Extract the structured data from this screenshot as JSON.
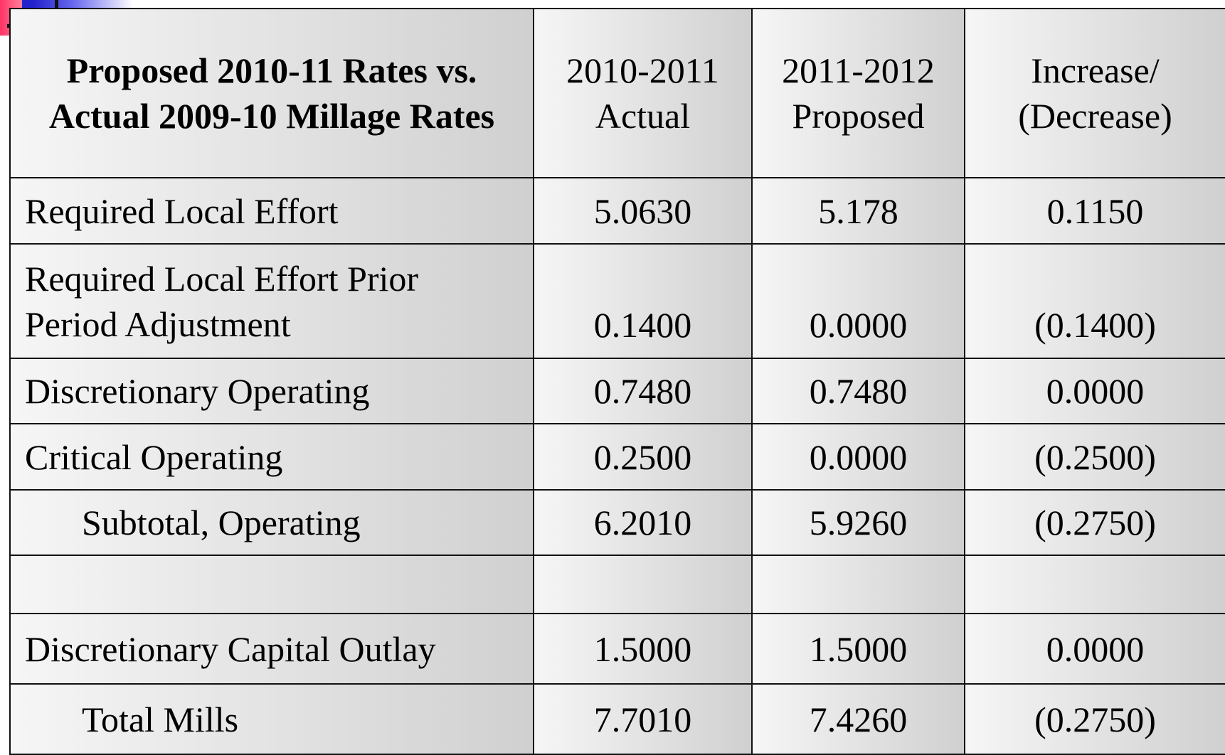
{
  "table": {
    "header": [
      [
        "Proposed 2010-11 Rates vs.",
        "Actual 2009-10 Millage Rates"
      ],
      [
        "2010-2011",
        "Actual"
      ],
      [
        "2011-2012",
        "Proposed"
      ],
      [
        "Increase/",
        "(Decrease)"
      ]
    ],
    "rows": [
      {
        "label": [
          "Required Local Effort"
        ],
        "values": [
          "5.0630",
          "5.178",
          "0.1150"
        ]
      },
      {
        "label": [
          "Required Local Effort Prior",
          "Period Adjustment"
        ],
        "values": [
          "0.1400",
          "0.0000",
          "(0.1400)"
        ]
      },
      {
        "label": [
          "Discretionary Operating"
        ],
        "values": [
          "0.7480",
          "0.7480",
          "0.0000"
        ]
      },
      {
        "label": [
          "Critical Operating"
        ],
        "values": [
          "0.2500",
          "0.0000",
          "(0.2500)"
        ]
      },
      {
        "label": [
          "Subtotal, Operating"
        ],
        "values": [
          "6.2010",
          "5.9260",
          "(0.2750)"
        ]
      },
      {
        "label": [
          "Discretionary Capital Outlay"
        ],
        "values": [
          "1.5000",
          "1.5000",
          "0.0000"
        ]
      },
      {
        "label": [
          "Total Mills"
        ],
        "values": [
          "7.7010",
          "7.4260",
          "(0.2750)"
        ]
      }
    ]
  }
}
